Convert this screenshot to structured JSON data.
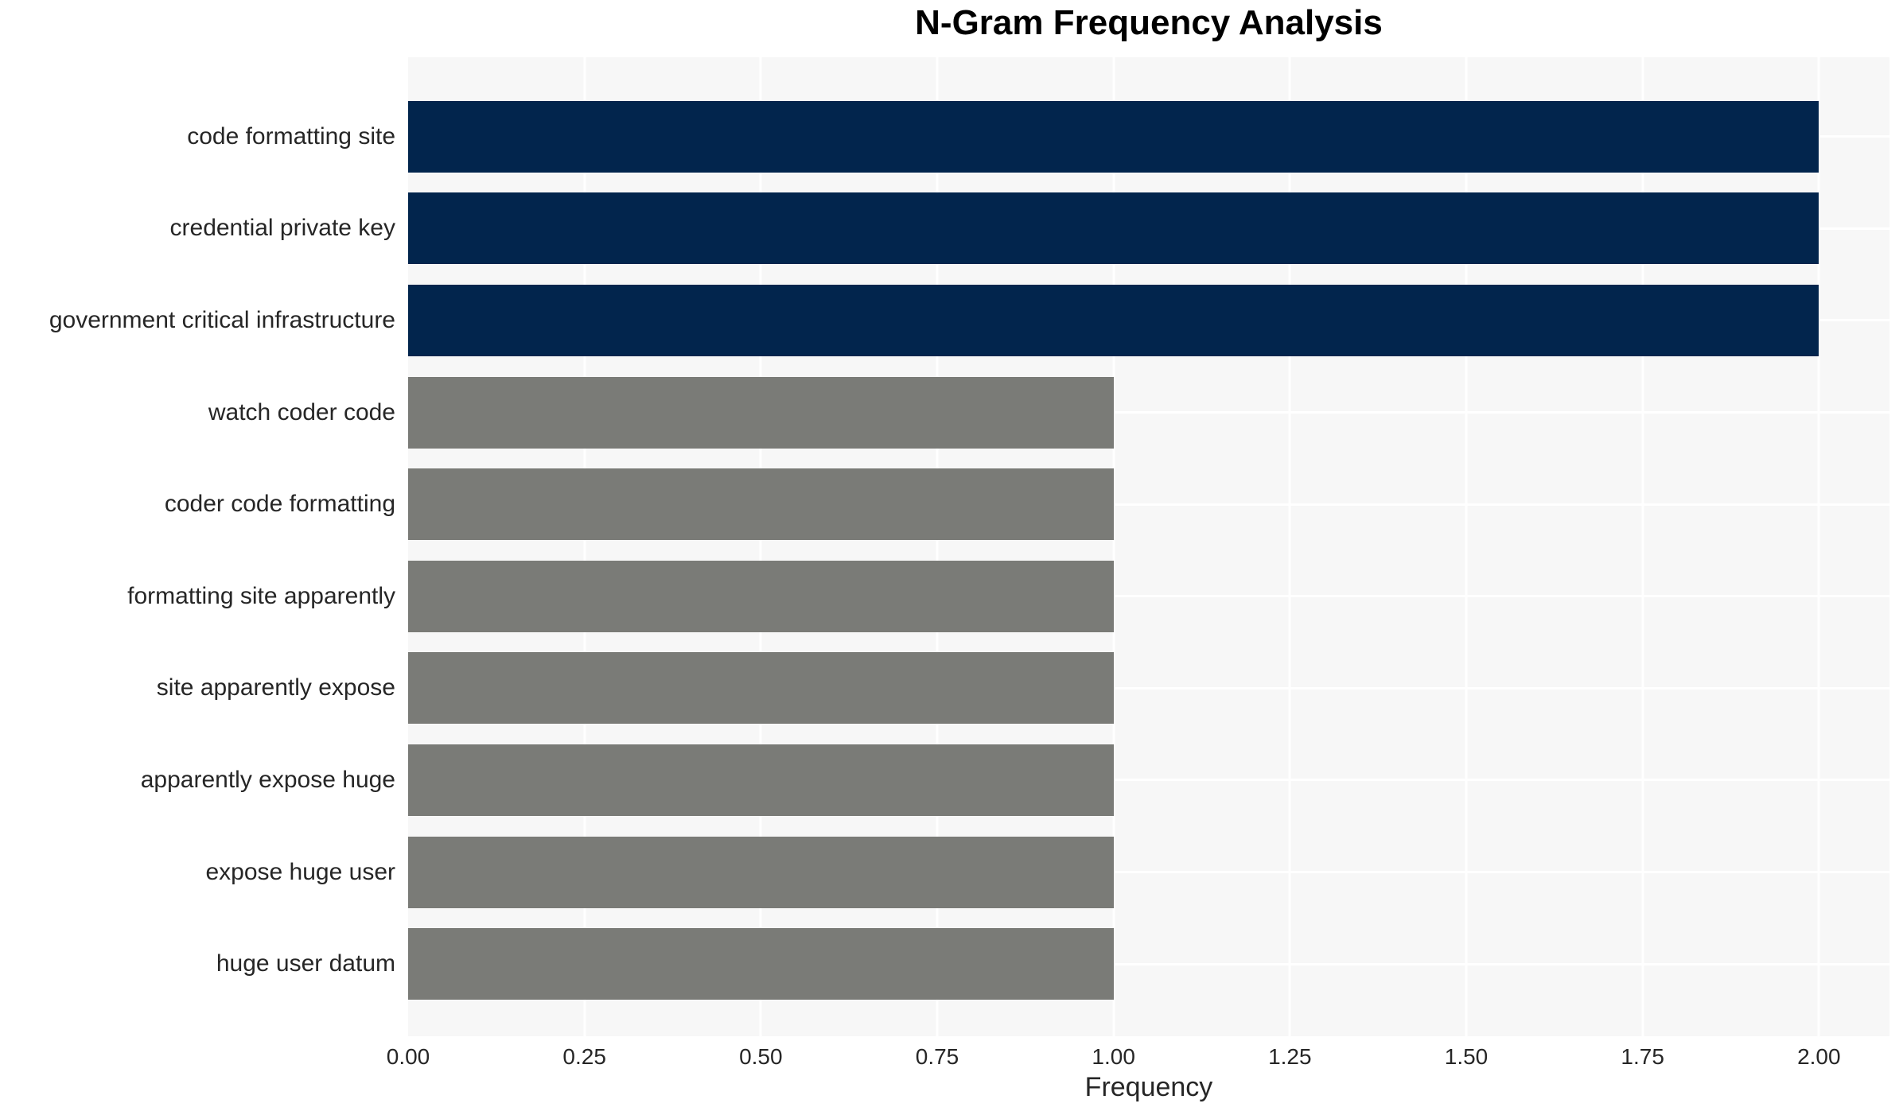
{
  "chart_data": {
    "type": "bar",
    "orientation": "horizontal",
    "title": "N-Gram Frequency Analysis",
    "xlabel": "Frequency",
    "ylabel": "",
    "categories": [
      "code formatting site",
      "credential private key",
      "government critical infrastructure",
      "watch coder code",
      "coder code formatting",
      "formatting site apparently",
      "site apparently expose",
      "apparently expose huge",
      "expose huge user",
      "huge user datum"
    ],
    "values": [
      2,
      2,
      2,
      1,
      1,
      1,
      1,
      1,
      1,
      1
    ],
    "bar_colors": [
      "#02254d",
      "#02254d",
      "#02254d",
      "#7a7b77",
      "#7a7b77",
      "#7a7b77",
      "#7a7b77",
      "#7a7b77",
      "#7a7b77",
      "#7a7b77"
    ],
    "xticks": [
      {
        "label": "0.00",
        "value": 0.0
      },
      {
        "label": "0.25",
        "value": 0.25
      },
      {
        "label": "0.50",
        "value": 0.5
      },
      {
        "label": "0.75",
        "value": 0.75
      },
      {
        "label": "1.00",
        "value": 1.0
      },
      {
        "label": "1.25",
        "value": 1.25
      },
      {
        "label": "1.50",
        "value": 1.5
      },
      {
        "label": "1.75",
        "value": 1.75
      },
      {
        "label": "2.00",
        "value": 2.0
      }
    ],
    "xlim": [
      0,
      2.1
    ],
    "legend": "none",
    "grid": {
      "vertical": true,
      "horizontal": true,
      "color": "#ffffff"
    },
    "colors": {
      "high_frequency_bar": "#02254d",
      "low_frequency_bar": "#7a7b77",
      "plot_background": "#f7f7f7",
      "page_background": "#ffffff",
      "gridline": "#ffffff",
      "label_text": "#262626",
      "title_text": "#000000"
    }
  }
}
